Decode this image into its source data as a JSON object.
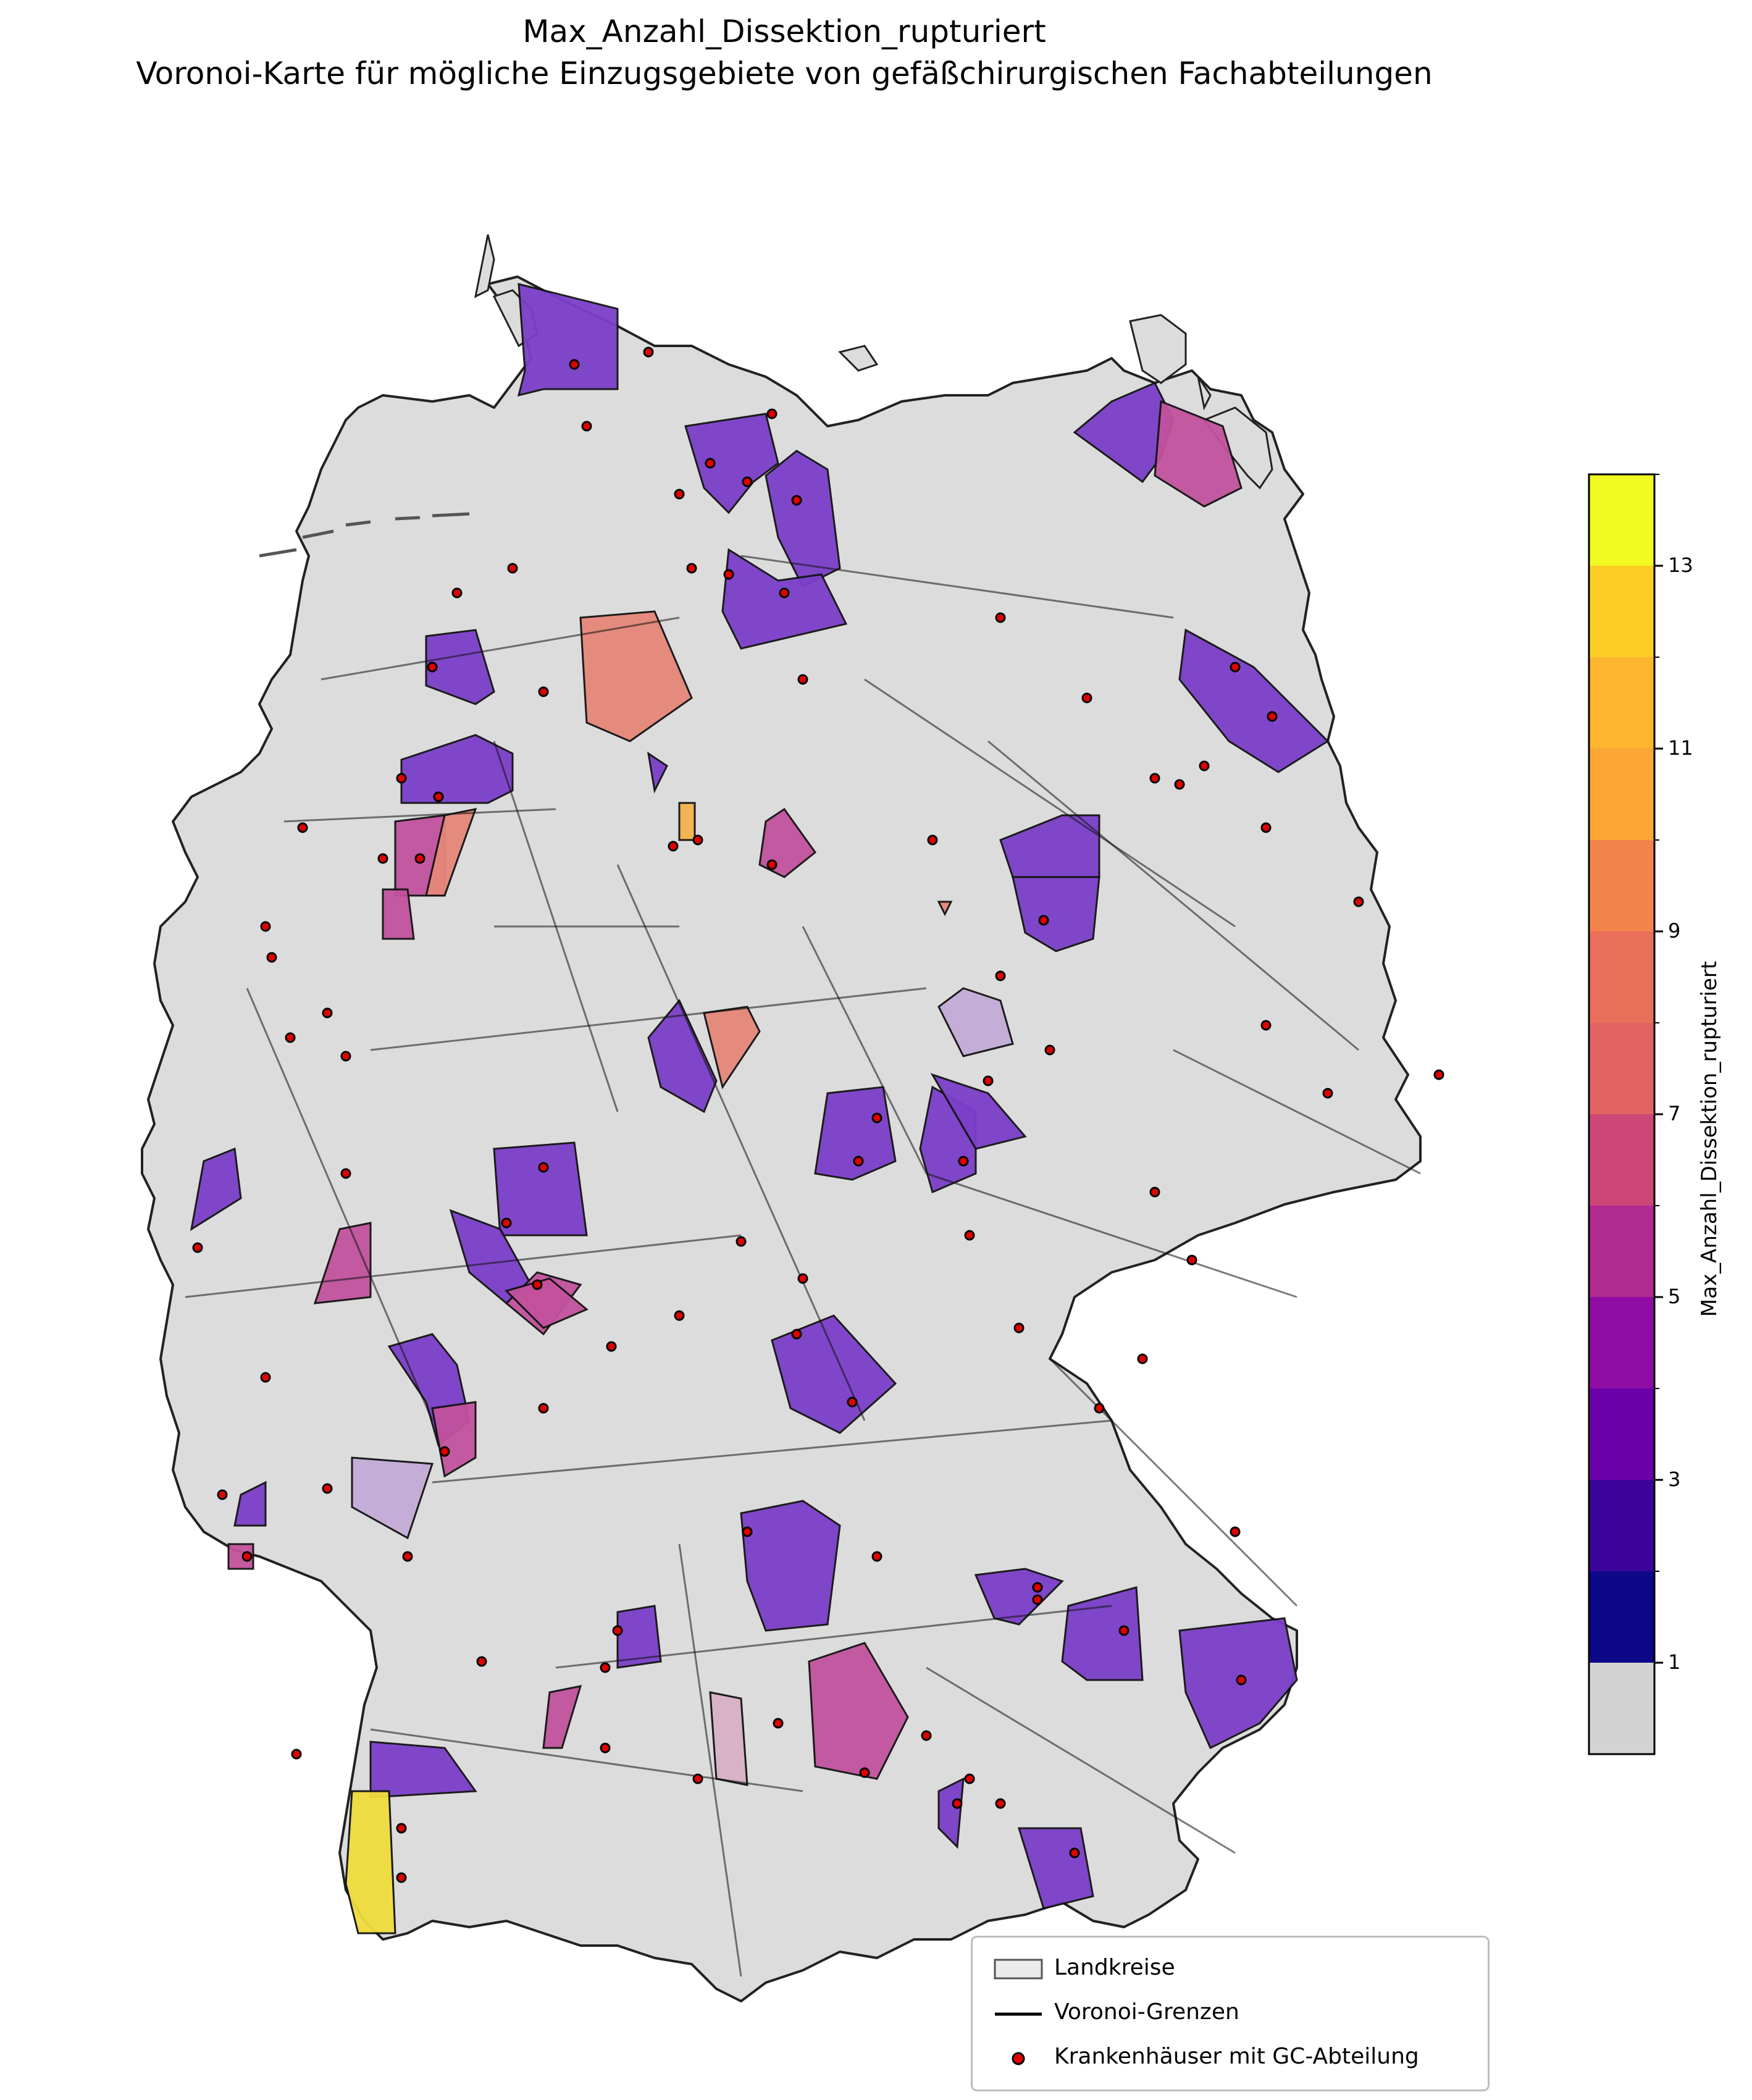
{
  "title_line1": "Max_Anzahl_Dissektion_rupturiert",
  "title_line2": "Voronoi-Karte für mögliche Einzugsgebiete von gefäßchirurgischen Fachabteilungen",
  "colorbar": {
    "label": "Max_Anzahl_Dissektion_rupturiert",
    "min": 0,
    "max": 14,
    "ticks": [
      "1",
      "3",
      "5",
      "7",
      "9",
      "11",
      "13"
    ],
    "colors": [
      "#d3d3d3",
      "#0d0887",
      "#3d049b",
      "#6a00a8",
      "#8f0da4",
      "#b12a90",
      "#cc4778",
      "#e16462",
      "#e86f5a",
      "#f2844b",
      "#fca636",
      "#fdb42f",
      "#fcce25",
      "#f0f921"
    ]
  },
  "legend": {
    "items": [
      {
        "label": "Landkreise",
        "kind": "patch"
      },
      {
        "label": "Voronoi-Grenzen",
        "kind": "line"
      },
      {
        "label": "Krankenhäuser mit GC-Abteilung",
        "kind": "dot"
      }
    ]
  },
  "map": {
    "land_color": "#dcdcdc",
    "border_color": "#222222",
    "hospital_color": "#e00000",
    "highlight_colors": {
      "violet": "#7b3fc9",
      "magenta": "#c2529d",
      "salmon": "#e6877a",
      "orange": "#f5b24d",
      "yellow": "#f0dc3c",
      "lavender": "#c3abd6",
      "pinklight": "#d8b0c6"
    }
  }
}
